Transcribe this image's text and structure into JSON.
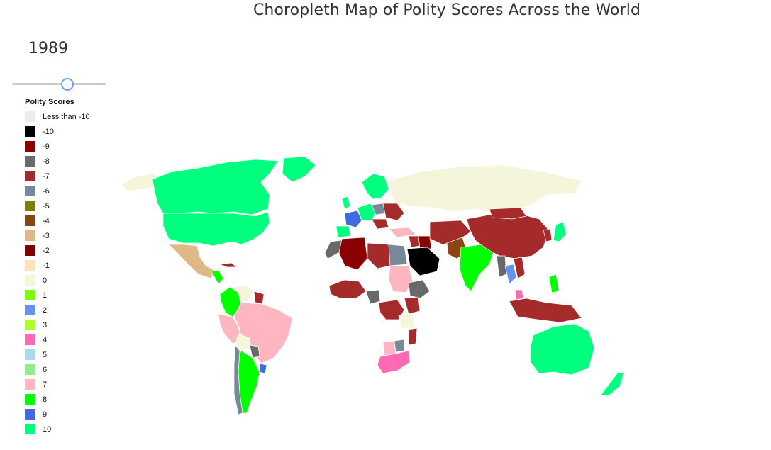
{
  "title": "Choropleth Map of Polity Scores Across the World",
  "year": "1989",
  "slider": {
    "value": 1989
  },
  "legend": {
    "title": "Polity Scores",
    "items": [
      {
        "label": "Less than -10",
        "color": "#ececec"
      },
      {
        "label": "-10",
        "color": "#000000"
      },
      {
        "label": "-9",
        "color": "#8b0000"
      },
      {
        "label": "-8",
        "color": "#696969"
      },
      {
        "label": "-7",
        "color": "#a52a2a"
      },
      {
        "label": "-6",
        "color": "#778899"
      },
      {
        "label": "-5",
        "color": "#808000"
      },
      {
        "label": "-4",
        "color": "#8b4513"
      },
      {
        "label": "-3",
        "color": "#deb887"
      },
      {
        "label": "-2",
        "color": "#800000"
      },
      {
        "label": "-1",
        "color": "#ffe4b5"
      },
      {
        "label": "0",
        "color": "#f5f5dc"
      },
      {
        "label": "1",
        "color": "#7cfc00"
      },
      {
        "label": "2",
        "color": "#6495ed"
      },
      {
        "label": "3",
        "color": "#adff2f"
      },
      {
        "label": "4",
        "color": "#ff69b4"
      },
      {
        "label": "5",
        "color": "#add8e6"
      },
      {
        "label": "6",
        "color": "#90ee90"
      },
      {
        "label": "7",
        "color": "#ffb6c1"
      },
      {
        "label": "8",
        "color": "#00ff00"
      },
      {
        "label": "9",
        "color": "#4169e1"
      },
      {
        "label": "10",
        "color": "#00ff7f"
      }
    ]
  },
  "regions": [
    {
      "name": "canada",
      "score": "10"
    },
    {
      "name": "usa",
      "score": "10"
    },
    {
      "name": "greenland",
      "score": "10"
    },
    {
      "name": "alaska",
      "score": "0"
    },
    {
      "name": "mexico",
      "score": "-3"
    },
    {
      "name": "central-america",
      "score": "8"
    },
    {
      "name": "cuba",
      "score": "-7"
    },
    {
      "name": "colombia",
      "score": "8"
    },
    {
      "name": "venezuela",
      "score": "0"
    },
    {
      "name": "guianas",
      "score": "-7"
    },
    {
      "name": "brazil",
      "score": "7"
    },
    {
      "name": "peru",
      "score": "7"
    },
    {
      "name": "bolivia",
      "score": "0"
    },
    {
      "name": "paraguay",
      "score": "-8"
    },
    {
      "name": "uruguay",
      "score": "9"
    },
    {
      "name": "argentina",
      "score": "8"
    },
    {
      "name": "chile",
      "score": "-6"
    },
    {
      "name": "russia",
      "score": "0"
    },
    {
      "name": "scandinavia",
      "score": "10"
    },
    {
      "name": "uk",
      "score": "10"
    },
    {
      "name": "france",
      "score": "9"
    },
    {
      "name": "iberia",
      "score": "10"
    },
    {
      "name": "central-europe",
      "score": "10"
    },
    {
      "name": "eastern-europe",
      "score": "-7"
    },
    {
      "name": "poland",
      "score": "-6"
    },
    {
      "name": "balkans",
      "score": "-7"
    },
    {
      "name": "turkey",
      "score": "7"
    },
    {
      "name": "morocco",
      "score": "-8"
    },
    {
      "name": "algeria",
      "score": "-9"
    },
    {
      "name": "libya",
      "score": "-7"
    },
    {
      "name": "egypt",
      "score": "-6"
    },
    {
      "name": "sudan",
      "score": "7"
    },
    {
      "name": "west-africa",
      "score": "-7"
    },
    {
      "name": "central-africa",
      "score": "-8"
    },
    {
      "name": "ethiopia",
      "score": "-8"
    },
    {
      "name": "east-africa",
      "score": "-7"
    },
    {
      "name": "congo",
      "score": "-7"
    },
    {
      "name": "angola",
      "score": "0"
    },
    {
      "name": "mozambique",
      "score": "-7"
    },
    {
      "name": "south-africa",
      "score": "4"
    },
    {
      "name": "namibia",
      "score": "7"
    },
    {
      "name": "botswana",
      "score": "-6"
    },
    {
      "name": "middle-east",
      "score": "-7"
    },
    {
      "name": "iraq",
      "score": "-9"
    },
    {
      "name": "saudi-arabia",
      "score": "-10"
    },
    {
      "name": "iran-central-asia",
      "score": "-7"
    },
    {
      "name": "pakistan",
      "score": "-4"
    },
    {
      "name": "india",
      "score": "8"
    },
    {
      "name": "china",
      "score": "-7"
    },
    {
      "name": "mongolia",
      "score": "-7"
    },
    {
      "name": "japan",
      "score": "10"
    },
    {
      "name": "korea",
      "score": "-7"
    },
    {
      "name": "myanmar",
      "score": "-8"
    },
    {
      "name": "thailand",
      "score": "2"
    },
    {
      "name": "indochina",
      "score": "-7"
    },
    {
      "name": "malaysia",
      "score": "4"
    },
    {
      "name": "indonesia",
      "score": "-7"
    },
    {
      "name": "philippines",
      "score": "8"
    },
    {
      "name": "australia",
      "score": "10"
    },
    {
      "name": "new-zealand",
      "score": "10"
    }
  ]
}
